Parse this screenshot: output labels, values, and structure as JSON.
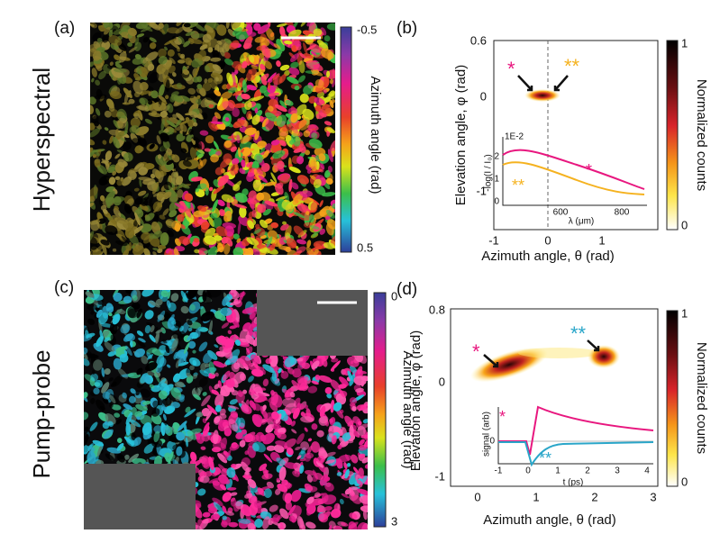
{
  "panels": [
    {
      "label": "(a)",
      "row_title": "Hyperspectral",
      "colorbar": {
        "label": "Azimuth angle (rad)",
        "ticks": [
          "-0.5",
          "0.5"
        ]
      }
    },
    {
      "label": "(b)",
      "x_label": "Azimuth angle, θ (rad)",
      "y_label": "Elevation angle, φ (rad)",
      "x_ticks": [
        "-1",
        "0",
        "1"
      ],
      "y_ticks": [
        "0.6",
        "0",
        "-1"
      ],
      "colorbar": {
        "label": "Normalized counts",
        "ticks": [
          "1",
          "0"
        ]
      },
      "markers": [
        "*",
        "**"
      ],
      "inset": {
        "scale": "1E-2",
        "y_label": "-log(I / I₀)",
        "x_label": "λ (μm)",
        "y_ticks": [
          "2",
          "1",
          "0"
        ],
        "x_ticks": [
          "600",
          "800"
        ],
        "markers": [
          "*",
          "**"
        ]
      }
    },
    {
      "label": "(c)",
      "row_title": "Pump-probe",
      "colorbar": {
        "label": "Azimuth angle (rad)",
        "ticks": [
          "0",
          "3"
        ]
      }
    },
    {
      "label": "(d)",
      "x_label": "Azimuth angle, θ (rad)",
      "y_label": "Elevation angle, φ (rad)",
      "x_ticks": [
        "0",
        "1",
        "2",
        "3"
      ],
      "y_ticks": [
        "0.8",
        "0",
        "-1"
      ],
      "colorbar": {
        "label": "Normalized counts",
        "ticks": [
          "1",
          "0"
        ]
      },
      "markers": [
        "*",
        "**"
      ],
      "inset": {
        "y_label": "signal (arb)",
        "x_label": "t (ps)",
        "y_ticks": [
          "0"
        ],
        "x_ticks": [
          "-1",
          "0",
          "1",
          "2",
          "3",
          "4"
        ],
        "markers": [
          "*",
          "**"
        ]
      }
    }
  ]
}
